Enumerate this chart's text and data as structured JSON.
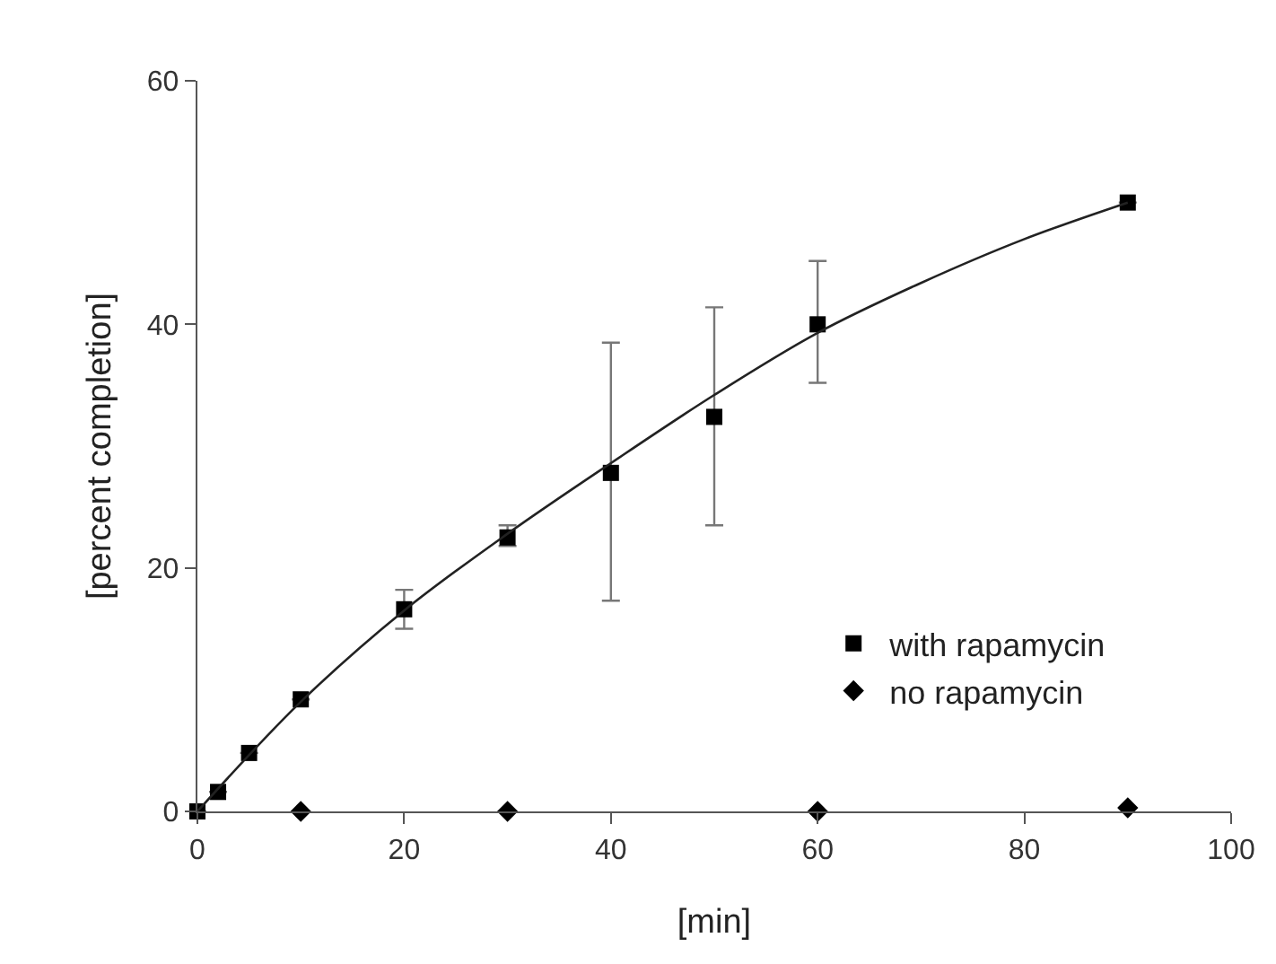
{
  "chart_data": {
    "type": "scatter",
    "xlabel": "[min]",
    "ylabel": "[percent completion]",
    "xlim": [
      0,
      100
    ],
    "xticks": [
      0,
      20,
      40,
      60,
      80,
      100
    ],
    "ylim": [
      0,
      60
    ],
    "yticks": [
      0,
      20,
      40,
      60
    ],
    "grid": false,
    "legend": "bottom right",
    "series": [
      {
        "name": "with rapamycin",
        "color": "#000000",
        "marker": "square",
        "x": [
          0,
          2,
          5,
          10,
          20,
          30,
          40,
          50,
          60,
          90
        ],
        "values": [
          0,
          1.6,
          4.8,
          9.2,
          16.6,
          22.5,
          27.8,
          32.4,
          40,
          50
        ],
        "errors": [
          null,
          null,
          null,
          null,
          [
            15,
            18.2
          ],
          [
            21.8,
            23.5
          ],
          [
            17.3,
            38.5
          ],
          [
            23.5,
            41.4
          ],
          [
            35.2,
            45.2
          ],
          null
        ]
      },
      {
        "name": "no rapamycin",
        "color": "#000000",
        "marker": "diamond",
        "x": [
          10,
          30,
          60,
          90
        ],
        "values": [
          0,
          0,
          0,
          0.3
        ]
      },
      {
        "type": "line",
        "color": "#222222",
        "marker": "none",
        "line_style": "solid",
        "x": [
          0,
          10,
          20,
          30,
          40,
          50,
          60,
          70,
          80,
          90
        ],
        "values": [
          0,
          9,
          16.5,
          22.8,
          28.6,
          34.2,
          39.3,
          43.4,
          47,
          50
        ]
      }
    ]
  }
}
